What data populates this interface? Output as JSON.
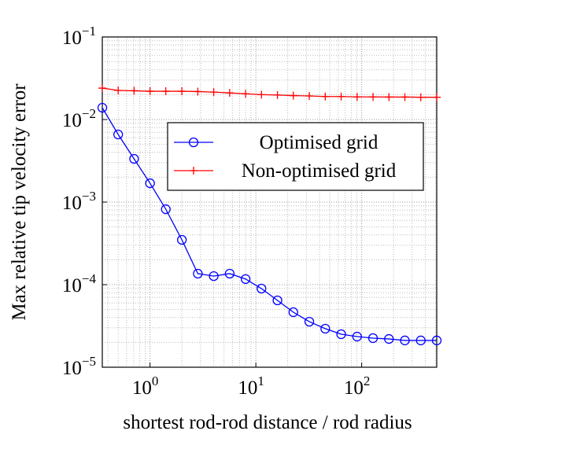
{
  "chart_data": {
    "type": "line",
    "x_label": "shortest rod-rod distance / rod radius",
    "y_label": "Max relative tip velocity error",
    "x": [
      0.354,
      0.5,
      0.707,
      1,
      1.41,
      2,
      2.83,
      4,
      5.66,
      8,
      11.3,
      16,
      22.6,
      32,
      45.3,
      64,
      90.5,
      128,
      181,
      256,
      362,
      512
    ],
    "series": [
      {
        "name": "Optimised grid",
        "color": "#0000ff",
        "marker": "circle",
        "values": [
          0.0139,
          0.00659,
          0.00334,
          0.00169,
          0.00082,
          0.000349,
          0.000136,
          0.000127,
          0.000136,
          0.000117,
          8.96e-05,
          6.45e-05,
          4.64e-05,
          3.56e-05,
          2.93e-05,
          2.51e-05,
          2.35e-05,
          2.25e-05,
          2.2e-05,
          2.11e-05,
          2.11e-05,
          2.11e-05
        ]
      },
      {
        "name": "Non-optimised grid",
        "color": "#ff0000",
        "marker": "plus",
        "values": [
          0.024,
          0.0225,
          0.0223,
          0.022,
          0.022,
          0.022,
          0.0218,
          0.0215,
          0.021,
          0.0205,
          0.02,
          0.0198,
          0.0195,
          0.0193,
          0.019,
          0.019,
          0.0188,
          0.0188,
          0.0187,
          0.0187,
          0.0186,
          0.0186
        ]
      }
    ],
    "x_log": true,
    "y_log": true,
    "xlim": [
      0.354,
      512
    ],
    "ylim": [
      1e-05,
      0.1
    ],
    "xticks": [
      {
        "value": 1,
        "label": "10",
        "exponent": "0"
      },
      {
        "value": 10,
        "label": "10",
        "exponent": "1"
      },
      {
        "value": 100,
        "label": "10",
        "exponent": "2"
      }
    ],
    "yticks": [
      {
        "value": 0.1,
        "label": "10",
        "exponent": "−1"
      },
      {
        "value": 0.01,
        "label": "10",
        "exponent": "−2"
      },
      {
        "value": 0.001,
        "label": "10",
        "exponent": "−3"
      },
      {
        "value": 0.0001,
        "label": "10",
        "exponent": "−4"
      },
      {
        "value": 1e-05,
        "label": "10",
        "exponent": "−5"
      }
    ],
    "grid": true,
    "legend_position": "upper right"
  }
}
